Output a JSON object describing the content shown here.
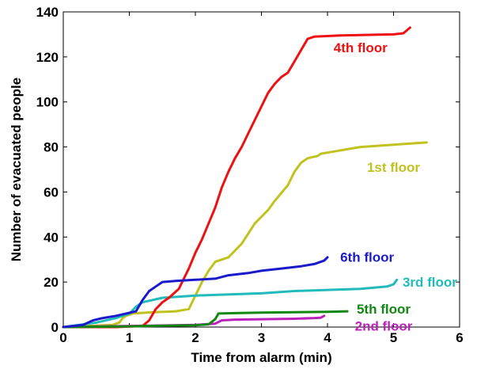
{
  "chart_data": {
    "type": "line",
    "title": "",
    "xlabel": "Time from alarm (min)",
    "ylabel": "Number of evacuated people",
    "xlim": [
      0,
      6
    ],
    "ylim": [
      0,
      140
    ],
    "xticks": [
      0,
      1,
      2,
      3,
      4,
      5,
      6
    ],
    "yticks": [
      0,
      20,
      40,
      60,
      80,
      100,
      120,
      140
    ],
    "grid": false,
    "legend": "inline labels next to each line",
    "series": [
      {
        "name": "1st floor",
        "color": "#c2c21e",
        "points": [
          [
            0,
            0
          ],
          [
            0.75,
            1
          ],
          [
            0.85,
            2
          ],
          [
            0.9,
            4
          ],
          [
            0.95,
            5
          ],
          [
            1.05,
            6
          ],
          [
            1.3,
            6.5
          ],
          [
            1.7,
            7
          ],
          [
            1.9,
            8
          ],
          [
            2.0,
            14
          ],
          [
            2.1,
            20
          ],
          [
            2.2,
            25
          ],
          [
            2.3,
            29
          ],
          [
            2.5,
            31
          ],
          [
            2.7,
            37
          ],
          [
            2.9,
            46
          ],
          [
            3.0,
            49
          ],
          [
            3.1,
            52
          ],
          [
            3.2,
            56
          ],
          [
            3.4,
            63
          ],
          [
            3.5,
            69
          ],
          [
            3.6,
            73
          ],
          [
            3.7,
            75
          ],
          [
            3.85,
            76
          ],
          [
            3.9,
            77
          ],
          [
            4.1,
            78
          ],
          [
            4.3,
            79
          ],
          [
            4.5,
            80
          ],
          [
            5.0,
            81
          ],
          [
            5.5,
            82
          ]
        ]
      },
      {
        "name": "2nd floor",
        "color": "#bb22bb",
        "points": [
          [
            0,
            0
          ],
          [
            0.6,
            0.3
          ],
          [
            1.0,
            0.5
          ],
          [
            1.5,
            0.7
          ],
          [
            2.0,
            1
          ],
          [
            2.3,
            1.5
          ],
          [
            2.4,
            3
          ],
          [
            2.6,
            3.3
          ],
          [
            3.0,
            3.5
          ],
          [
            3.5,
            3.7
          ],
          [
            3.8,
            4
          ],
          [
            3.9,
            4.2
          ],
          [
            3.95,
            5
          ]
        ]
      },
      {
        "name": "3rd floor",
        "color": "#22bbbb",
        "points": [
          [
            0,
            0
          ],
          [
            0.5,
            2
          ],
          [
            0.8,
            4
          ],
          [
            1.0,
            6
          ],
          [
            1.1,
            9
          ],
          [
            1.2,
            11
          ],
          [
            1.5,
            13
          ],
          [
            2.0,
            14
          ],
          [
            3.0,
            15
          ],
          [
            3.5,
            16
          ],
          [
            4.0,
            16.5
          ],
          [
            4.5,
            17
          ],
          [
            4.9,
            18
          ],
          [
            5.0,
            19
          ],
          [
            5.05,
            21
          ]
        ]
      },
      {
        "name": "4th floor",
        "color": "#ee1111",
        "points": [
          [
            0,
            0
          ],
          [
            0.8,
            0
          ],
          [
            1.2,
            0.5
          ],
          [
            1.3,
            3
          ],
          [
            1.4,
            8
          ],
          [
            1.5,
            11
          ],
          [
            1.6,
            13
          ],
          [
            1.75,
            17
          ],
          [
            1.8,
            20
          ],
          [
            1.9,
            26
          ],
          [
            2.0,
            33
          ],
          [
            2.1,
            39
          ],
          [
            2.2,
            46
          ],
          [
            2.3,
            53
          ],
          [
            2.4,
            62
          ],
          [
            2.5,
            69
          ],
          [
            2.6,
            75
          ],
          [
            2.7,
            80
          ],
          [
            2.8,
            86
          ],
          [
            2.9,
            92
          ],
          [
            3.0,
            98
          ],
          [
            3.1,
            104
          ],
          [
            3.2,
            108
          ],
          [
            3.3,
            111
          ],
          [
            3.4,
            113
          ],
          [
            3.5,
            118
          ],
          [
            3.6,
            123
          ],
          [
            3.7,
            128
          ],
          [
            3.8,
            129
          ],
          [
            4.2,
            129.5
          ],
          [
            5.0,
            130
          ],
          [
            5.15,
            130.5
          ],
          [
            5.25,
            133
          ]
        ]
      },
      {
        "name": "5th floor",
        "color": "#118811",
        "points": [
          [
            0,
            0
          ],
          [
            1.0,
            0.3
          ],
          [
            1.5,
            0.6
          ],
          [
            2.0,
            0.8
          ],
          [
            2.2,
            1.2
          ],
          [
            2.3,
            3.5
          ],
          [
            2.35,
            6
          ],
          [
            2.6,
            6.2
          ],
          [
            3.0,
            6.4
          ],
          [
            3.5,
            6.6
          ],
          [
            4.0,
            6.8
          ],
          [
            4.3,
            7
          ]
        ]
      },
      {
        "name": "6th floor",
        "color": "#1a1acc",
        "points": [
          [
            0,
            0
          ],
          [
            0.3,
            1
          ],
          [
            0.45,
            3
          ],
          [
            0.6,
            4
          ],
          [
            0.8,
            5
          ],
          [
            0.95,
            6
          ],
          [
            1.1,
            7
          ],
          [
            1.2,
            12
          ],
          [
            1.3,
            16
          ],
          [
            1.4,
            18
          ],
          [
            1.5,
            20
          ],
          [
            1.7,
            20.5
          ],
          [
            2.0,
            21
          ],
          [
            2.3,
            21.5
          ],
          [
            2.5,
            23
          ],
          [
            2.8,
            24
          ],
          [
            3.0,
            25
          ],
          [
            3.3,
            26
          ],
          [
            3.6,
            27
          ],
          [
            3.8,
            28
          ],
          [
            3.95,
            29.5
          ],
          [
            4.0,
            31
          ]
        ]
      }
    ]
  }
}
